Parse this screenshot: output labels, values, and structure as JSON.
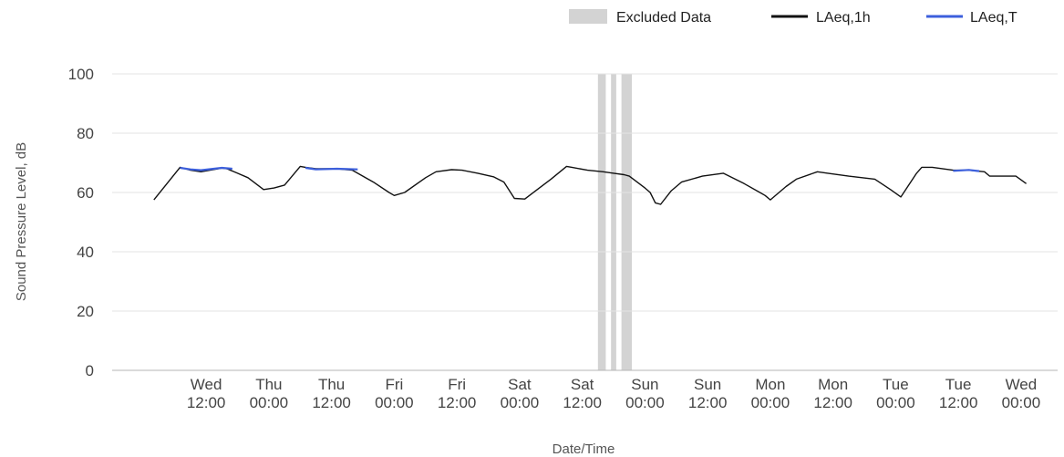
{
  "chart_data": {
    "type": "line",
    "xlabel": "Date/Time",
    "ylabel": "Sound Pressure Level, dB",
    "ylim": [
      0,
      100
    ],
    "yticks": [
      0,
      20,
      40,
      60,
      80,
      100
    ],
    "grid": "horizontal",
    "legend_position": "top-right",
    "x_unit": "hours",
    "xlim": [
      -18,
      163
    ],
    "xticks": [
      {
        "h": 0,
        "day": "Wed",
        "time": "12:00"
      },
      {
        "h": 12,
        "day": "Thu",
        "time": "00:00"
      },
      {
        "h": 24,
        "day": "Thu",
        "time": "12:00"
      },
      {
        "h": 36,
        "day": "Fri",
        "time": "00:00"
      },
      {
        "h": 48,
        "day": "Fri",
        "time": "12:00"
      },
      {
        "h": 60,
        "day": "Sat",
        "time": "00:00"
      },
      {
        "h": 72,
        "day": "Sat",
        "time": "12:00"
      },
      {
        "h": 84,
        "day": "Sun",
        "time": "00:00"
      },
      {
        "h": 96,
        "day": "Sun",
        "time": "12:00"
      },
      {
        "h": 108,
        "day": "Mon",
        "time": "00:00"
      },
      {
        "h": 120,
        "day": "Mon",
        "time": "12:00"
      },
      {
        "h": 132,
        "day": "Tue",
        "time": "00:00"
      },
      {
        "h": 144,
        "day": "Tue",
        "time": "12:00"
      },
      {
        "h": 156,
        "day": "Wed",
        "time": "00:00"
      }
    ],
    "excluded_ranges": [
      [
        75,
        76.5
      ],
      [
        77.5,
        78.5
      ],
      [
        79.5,
        81.5
      ]
    ],
    "series": [
      {
        "name": "LAeq,1h",
        "color": "#111111",
        "points": [
          [
            -10,
            57.5
          ],
          [
            -5,
            68.5
          ],
          [
            -3,
            67.5
          ],
          [
            -1,
            67.0
          ],
          [
            3,
            68.2
          ],
          [
            4,
            68.0
          ],
          [
            6,
            66.5
          ],
          [
            8,
            65.0
          ],
          [
            11,
            61.0
          ],
          [
            13,
            61.5
          ],
          [
            15,
            62.5
          ],
          [
            18,
            68.8
          ],
          [
            19,
            68.5
          ],
          [
            21,
            68.0
          ],
          [
            25,
            68.0
          ],
          [
            28,
            67.5
          ],
          [
            32,
            63.5
          ],
          [
            35,
            60.0
          ],
          [
            36,
            59.0
          ],
          [
            38,
            60.0
          ],
          [
            42,
            65.0
          ],
          [
            44,
            67.0
          ],
          [
            47,
            67.7
          ],
          [
            49,
            67.5
          ],
          [
            52,
            66.5
          ],
          [
            55,
            65.3
          ],
          [
            57,
            63.5
          ],
          [
            59,
            58.0
          ],
          [
            61,
            57.8
          ],
          [
            63,
            60.5
          ],
          [
            66,
            64.5
          ],
          [
            69,
            68.8
          ],
          [
            70,
            68.5
          ],
          [
            73,
            67.5
          ],
          [
            76,
            67.0
          ],
          [
            78,
            66.5
          ],
          [
            80,
            66.0
          ],
          [
            81,
            65.5
          ],
          [
            84,
            61.5
          ],
          [
            85,
            60.0
          ],
          [
            86,
            56.5
          ],
          [
            87,
            56.0
          ],
          [
            89,
            60.5
          ],
          [
            91,
            63.5
          ],
          [
            95,
            65.5
          ],
          [
            99,
            66.5
          ],
          [
            103,
            63.0
          ],
          [
            106,
            60.0
          ],
          [
            107,
            59.0
          ],
          [
            108,
            57.5
          ],
          [
            111,
            62.0
          ],
          [
            113,
            64.5
          ],
          [
            117,
            67.0
          ],
          [
            119,
            66.5
          ],
          [
            123,
            65.5
          ],
          [
            128,
            64.5
          ],
          [
            131,
            61.0
          ],
          [
            133,
            58.5
          ],
          [
            136,
            66.5
          ],
          [
            137,
            68.5
          ],
          [
            139,
            68.5
          ],
          [
            143,
            67.5
          ],
          [
            146,
            67.5
          ],
          [
            149,
            67.0
          ],
          [
            150,
            65.5
          ],
          [
            155,
            65.5
          ],
          [
            157,
            63.0
          ]
        ]
      },
      {
        "name": "LAeq,T",
        "color": "#3c5fdc",
        "segments": [
          [
            [
              -5,
              68.3
            ],
            [
              -3,
              67.8
            ],
            [
              -1,
              67.5
            ],
            [
              3,
              68.3
            ],
            [
              5,
              68.0
            ]
          ],
          [
            [
              19,
              68.3
            ],
            [
              21,
              67.8
            ],
            [
              25,
              68.0
            ],
            [
              29,
              67.8
            ]
          ],
          [
            [
              143,
              67.3
            ],
            [
              146,
              67.6
            ],
            [
              148,
              67.2
            ]
          ]
        ]
      }
    ],
    "legend": [
      {
        "label": "Excluded Data",
        "kind": "box",
        "color": "#d3d3d3"
      },
      {
        "label": "LAeq,1h",
        "kind": "line",
        "color": "#111111"
      },
      {
        "label": "LAeq,T",
        "kind": "line",
        "color": "#3c5fdc"
      }
    ]
  }
}
